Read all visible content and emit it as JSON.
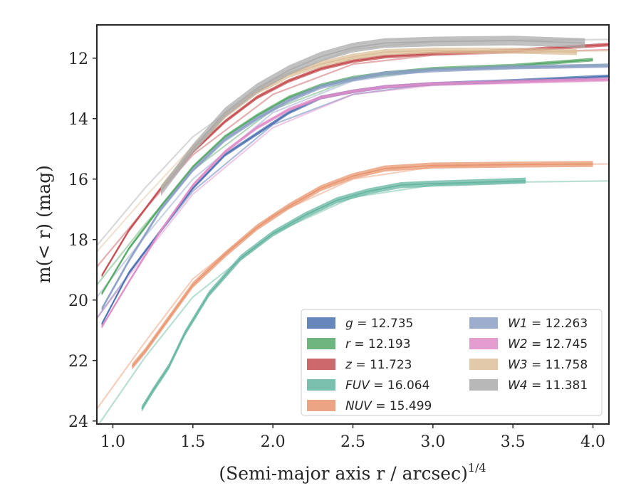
{
  "chart_data": {
    "type": "line",
    "xlabel": "(Semi-major axis r / arcsec)",
    "xlabel_exponent": "1/4",
    "ylabel": "m(< r) (mag)",
    "xlim": [
      0.9,
      4.1
    ],
    "ylim": [
      24.1,
      10.9
    ],
    "y_inverted": true,
    "x_ticks": [
      "1.0",
      "1.5",
      "2.0",
      "2.5",
      "3.0",
      "3.5",
      "4.0"
    ],
    "y_ticks": [
      "12",
      "14",
      "16",
      "18",
      "20",
      "22",
      "24"
    ],
    "grid": false,
    "legend_position": "lower-right",
    "legend_columns": 2,
    "series": [
      {
        "name": "g = 12.735",
        "var": "g",
        "value": "12.735",
        "color": "#4C72B0",
        "band": 0.06,
        "x": [
          0.93,
          1.1,
          1.3,
          1.5,
          1.7,
          1.9,
          2.1,
          2.3,
          2.5,
          2.7,
          3.0,
          3.5,
          4.1
        ],
        "y": [
          20.8,
          19.1,
          17.7,
          16.3,
          15.2,
          14.5,
          13.8,
          13.3,
          13.1,
          12.95,
          12.85,
          12.75,
          12.6
        ]
      },
      {
        "name": "r = 12.193",
        "var": "r",
        "value": "12.193",
        "color": "#55A868",
        "band": 0.06,
        "x": [
          0.93,
          1.1,
          1.3,
          1.5,
          1.7,
          1.9,
          2.1,
          2.3,
          2.5,
          2.7,
          3.0,
          3.5,
          4.0
        ],
        "y": [
          19.8,
          18.3,
          16.9,
          15.6,
          14.6,
          13.9,
          13.3,
          12.9,
          12.65,
          12.5,
          12.35,
          12.25,
          12.05
        ]
      },
      {
        "name": "z = 11.723",
        "var": "z",
        "value": "11.723",
        "color": "#C44E52",
        "band": 0.06,
        "x": [
          0.93,
          1.1,
          1.3,
          1.5,
          1.7,
          1.9,
          2.1,
          2.3,
          2.5,
          2.7,
          3.0,
          3.5,
          4.1
        ],
        "y": [
          19.2,
          17.7,
          16.3,
          15.1,
          14.1,
          13.3,
          12.75,
          12.35,
          12.1,
          11.95,
          11.85,
          11.75,
          11.55
        ]
      },
      {
        "name": "FUV = 16.064",
        "var": "FUV",
        "value": "16.064",
        "color": "#64B5A0",
        "band": 0.1,
        "x": [
          1.18,
          1.25,
          1.35,
          1.45,
          1.6,
          1.8,
          2.0,
          2.2,
          2.4,
          2.6,
          2.8,
          3.0,
          3.3,
          3.58
        ],
        "y": [
          23.6,
          23.0,
          22.2,
          21.1,
          19.8,
          18.6,
          17.8,
          17.2,
          16.7,
          16.4,
          16.2,
          16.15,
          16.1,
          16.05
        ]
      },
      {
        "name": "NUV = 15.499",
        "var": "NUV",
        "value": "15.499",
        "color": "#E8956F",
        "band": 0.1,
        "x": [
          1.12,
          1.2,
          1.35,
          1.5,
          1.7,
          1.9,
          2.1,
          2.3,
          2.5,
          2.7,
          3.0,
          3.5,
          4.0
        ],
        "y": [
          22.2,
          21.7,
          20.6,
          19.5,
          18.5,
          17.6,
          16.9,
          16.3,
          15.9,
          15.65,
          15.55,
          15.52,
          15.5
        ]
      },
      {
        "name": "W1 = 12.263",
        "var": "W1",
        "value": "12.263",
        "color": "#8C9FC6",
        "band": 0.07,
        "x": [
          0.93,
          1.1,
          1.3,
          1.5,
          1.7,
          1.9,
          2.1,
          2.3,
          2.5,
          2.7,
          3.0,
          3.5,
          4.1
        ],
        "y": [
          20.3,
          18.7,
          17.0,
          15.7,
          14.7,
          14.0,
          13.4,
          12.95,
          12.7,
          12.5,
          12.4,
          12.3,
          12.25
        ]
      },
      {
        "name": "W2 = 12.745",
        "var": "W2",
        "value": "12.745",
        "color": "#E08CC8",
        "band": 0.06,
        "x": [
          0.93,
          1.1,
          1.3,
          1.5,
          1.7,
          1.9,
          2.1,
          2.3,
          2.5,
          2.7,
          3.0,
          3.5,
          4.1
        ],
        "y": [
          20.9,
          19.4,
          17.7,
          16.2,
          15.1,
          14.3,
          13.7,
          13.3,
          13.1,
          12.95,
          12.85,
          12.78,
          12.7
        ]
      },
      {
        "name": "W3 = 11.758",
        "var": "W3",
        "value": "11.758",
        "color": "#DCC09A",
        "band": 0.1,
        "x": [
          1.3,
          1.5,
          1.7,
          1.9,
          2.1,
          2.3,
          2.5,
          2.7,
          3.0,
          3.5,
          3.9
        ],
        "y": [
          16.3,
          15.0,
          13.9,
          13.1,
          12.55,
          12.2,
          11.95,
          11.8,
          11.75,
          11.75,
          11.8
        ]
      },
      {
        "name": "W4 = 11.381",
        "var": "W4",
        "value": "11.381",
        "color": "#ABABAB",
        "band": 0.16,
        "x": [
          1.3,
          1.5,
          1.7,
          1.9,
          2.1,
          2.3,
          2.5,
          2.7,
          3.0,
          3.5,
          3.95
        ],
        "y": [
          16.4,
          15.0,
          13.8,
          13.0,
          12.4,
          11.95,
          11.65,
          11.5,
          11.45,
          11.42,
          11.5
        ]
      }
    ],
    "model_lines": [
      {
        "color": "#4C72B0",
        "x": [
          0.9,
          1.2,
          1.5,
          2.0,
          2.5,
          3.0,
          4.1
        ],
        "y": [
          20.6,
          18.4,
          16.4,
          14.2,
          13.2,
          12.85,
          12.7
        ]
      },
      {
        "color": "#55A868",
        "x": [
          0.9,
          1.2,
          1.5,
          2.0,
          2.5,
          3.0,
          4.1
        ],
        "y": [
          19.5,
          17.5,
          15.7,
          13.7,
          12.7,
          12.4,
          12.2
        ]
      },
      {
        "color": "#C44E52",
        "x": [
          0.9,
          1.2,
          1.5,
          2.0,
          2.5,
          3.0,
          4.1
        ],
        "y": [
          18.9,
          17.0,
          15.2,
          13.2,
          12.2,
          11.9,
          11.72
        ]
      },
      {
        "color": "#64B5A0",
        "x": [
          0.9,
          1.2,
          1.5,
          2.0,
          2.5,
          3.0,
          3.5,
          4.1
        ],
        "y": [
          24.2,
          21.9,
          19.9,
          17.8,
          16.6,
          16.2,
          16.1,
          16.06
        ]
      },
      {
        "color": "#E8956F",
        "x": [
          0.9,
          1.2,
          1.5,
          2.0,
          2.5,
          3.0,
          3.5,
          4.1
        ],
        "y": [
          23.6,
          21.4,
          19.3,
          17.2,
          16.0,
          15.6,
          15.52,
          15.5
        ]
      },
      {
        "color": "#8C9FC6",
        "x": [
          0.9,
          1.2,
          1.5,
          2.0,
          2.5,
          3.0,
          4.1
        ],
        "y": [
          19.9,
          17.9,
          16.0,
          13.8,
          12.75,
          12.4,
          12.26
        ]
      },
      {
        "color": "#E08CC8",
        "x": [
          0.9,
          1.2,
          1.5,
          2.0,
          2.5,
          3.0,
          4.1
        ],
        "y": [
          20.6,
          18.5,
          16.5,
          14.3,
          13.2,
          12.9,
          12.75
        ]
      },
      {
        "color": "#DCC09A",
        "x": [
          0.9,
          1.2,
          1.5,
          2.0,
          2.5,
          3.0,
          4.1
        ],
        "y": [
          18.4,
          16.6,
          14.9,
          12.9,
          12.0,
          11.8,
          11.76
        ]
      },
      {
        "color": "#ABABAB",
        "x": [
          0.9,
          1.2,
          1.5,
          2.0,
          2.5,
          3.0,
          4.1
        ],
        "y": [
          18.2,
          16.3,
          14.6,
          12.7,
          11.7,
          11.45,
          11.38
        ]
      }
    ]
  }
}
